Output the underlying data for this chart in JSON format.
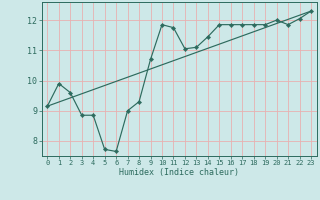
{
  "xlabel": "Humidex (Indice chaleur)",
  "background_color": "#cde8e8",
  "grid_color": "#e8b0b0",
  "line_color": "#2d6b5e",
  "xlim": [
    -0.5,
    23.5
  ],
  "ylim": [
    7.5,
    12.6
  ],
  "yticks": [
    8,
    9,
    10,
    11,
    12
  ],
  "xticks": [
    0,
    1,
    2,
    3,
    4,
    5,
    6,
    7,
    8,
    9,
    10,
    11,
    12,
    13,
    14,
    15,
    16,
    17,
    18,
    19,
    20,
    21,
    22,
    23
  ],
  "line1_x": [
    0,
    1,
    2,
    3,
    4,
    5,
    6,
    7,
    8,
    9,
    10,
    11,
    12,
    13,
    14,
    15,
    16,
    17,
    18,
    19,
    20,
    21,
    22,
    23
  ],
  "line1_y": [
    9.15,
    9.9,
    9.6,
    8.85,
    8.85,
    7.72,
    7.65,
    9.0,
    9.3,
    10.7,
    11.85,
    11.75,
    11.05,
    11.1,
    11.45,
    11.85,
    11.85,
    11.85,
    11.85,
    11.85,
    12.0,
    11.85,
    12.05,
    12.3
  ],
  "line2_x": [
    0,
    23
  ],
  "line2_y": [
    9.15,
    12.3
  ],
  "tick_fontsize": 5.0,
  "xlabel_fontsize": 6.0
}
